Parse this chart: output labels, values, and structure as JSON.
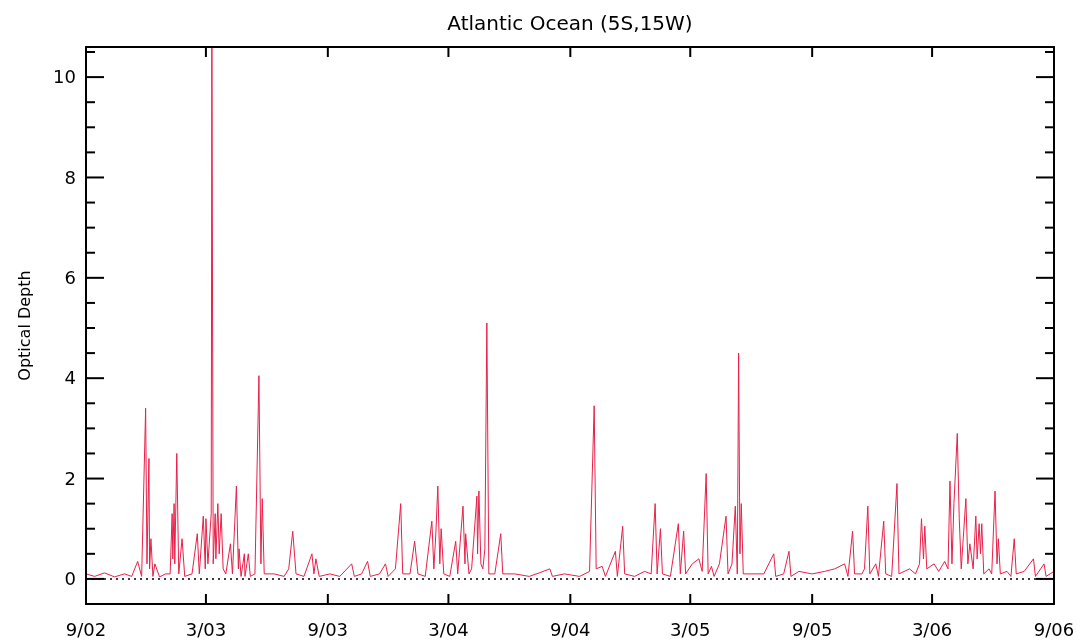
{
  "chart_data": {
    "type": "line",
    "title": "Atlantic Ocean (5S,15W)",
    "ylabel": "Optical Depth",
    "x": [
      "2002-09-01",
      "2002-09-14",
      "2002-09-29",
      "2002-10-14",
      "2002-10-29",
      "2002-11-09",
      "2002-11-18",
      "2002-11-24",
      "2002-11-30",
      "2002-12-02",
      "2002-12-05",
      "2002-12-06",
      "2002-12-08",
      "2002-12-11",
      "2002-12-14",
      "2002-12-21",
      "2002-12-30",
      "2003-01-06",
      "2003-01-09",
      "2003-01-10",
      "2003-01-12",
      "2003-01-13",
      "2003-01-16",
      "2003-01-19",
      "2003-01-24",
      "2003-01-28",
      "2003-02-08",
      "2003-02-16",
      "2003-02-19",
      "2003-02-25",
      "2003-02-28",
      "2003-03-01",
      "2003-03-04",
      "2003-03-09",
      "2003-03-10",
      "2003-03-12",
      "2003-03-15",
      "2003-03-16",
      "2003-03-19",
      "2003-03-21",
      "2003-03-24",
      "2003-03-27",
      "2003-03-31",
      "2003-04-07",
      "2003-04-10",
      "2003-04-16",
      "2003-04-19",
      "2003-04-20",
      "2003-04-23",
      "2003-04-28",
      "2003-04-29",
      "2003-05-04",
      "2003-05-07",
      "2003-05-14",
      "2003-05-20",
      "2003-05-23",
      "2003-05-25",
      "2003-05-28",
      "2003-06-12",
      "2003-06-27",
      "2003-07-04",
      "2003-07-10",
      "2003-07-15",
      "2003-07-27",
      "2003-08-08",
      "2003-08-11",
      "2003-08-14",
      "2003-08-19",
      "2003-09-04",
      "2003-09-19",
      "2003-10-07",
      "2003-10-11",
      "2003-10-22",
      "2003-10-31",
      "2003-11-04",
      "2003-11-18",
      "2003-11-27",
      "2003-12-01",
      "2003-12-12",
      "2003-12-20",
      "2003-12-23",
      "2004-01-03",
      "2004-01-10",
      "2004-01-15",
      "2004-01-26",
      "2004-02-05",
      "2004-02-08",
      "2004-02-11",
      "2004-02-14",
      "2004-02-17",
      "2004-02-19",
      "2004-02-23",
      "2004-03-03",
      "2004-03-12",
      "2004-03-15",
      "2004-03-23",
      "2004-03-26",
      "2004-03-27",
      "2004-04-01",
      "2004-04-05",
      "2004-04-13",
      "2004-04-14",
      "2004-04-16",
      "2004-04-19",
      "2004-04-22",
      "2004-04-25",
      "2004-04-28",
      "2004-05-01",
      "2004-05-10",
      "2004-05-19",
      "2004-05-22",
      "2004-06-09",
      "2004-07-01",
      "2004-07-16",
      "2004-08-01",
      "2004-08-05",
      "2004-08-23",
      "2004-09-15",
      "2004-09-30",
      "2004-10-07",
      "2004-10-10",
      "2004-10-19",
      "2004-10-24",
      "2004-11-08",
      "2004-11-11",
      "2004-11-19",
      "2004-11-22",
      "2004-12-07",
      "2004-12-22",
      "2005-01-01",
      "2005-01-07",
      "2005-01-10",
      "2005-01-15",
      "2005-01-18",
      "2005-01-30",
      "2005-02-11",
      "2005-02-14",
      "2005-02-19",
      "2005-02-22",
      "2005-03-04",
      "2005-03-14",
      "2005-03-19",
      "2005-03-25",
      "2005-03-28",
      "2005-04-02",
      "2005-04-06",
      "2005-04-14",
      "2005-04-24",
      "2005-04-27",
      "2005-05-03",
      "2005-05-08",
      "2005-05-11",
      "2005-05-13",
      "2005-05-15",
      "2005-05-17",
      "2005-05-20",
      "2005-06-05",
      "2005-06-20",
      "2005-07-05",
      "2005-07-08",
      "2005-07-20",
      "2005-07-28",
      "2005-07-31",
      "2005-08-12",
      "2005-09-01",
      "2005-09-20",
      "2005-10-05",
      "2005-10-20",
      "2005-10-25",
      "2005-11-01",
      "2005-11-04",
      "2005-11-15",
      "2005-11-19",
      "2005-11-24",
      "2005-11-27",
      "2005-12-06",
      "2005-12-10",
      "2005-12-18",
      "2005-12-21",
      "2005-12-30",
      "2006-01-07",
      "2006-01-10",
      "2006-01-26",
      "2006-02-04",
      "2006-02-10",
      "2006-02-13",
      "2006-02-16",
      "2006-02-18",
      "2006-02-21",
      "2006-03-04",
      "2006-03-11",
      "2006-03-20",
      "2006-03-25",
      "2006-03-28",
      "2006-03-31",
      "2006-04-03",
      "2006-04-08",
      "2006-04-11",
      "2006-04-14",
      "2006-04-17",
      "2006-04-21",
      "2006-04-24",
      "2006-04-27",
      "2006-05-02",
      "2006-05-06",
      "2006-05-08",
      "2006-05-11",
      "2006-05-13",
      "2006-05-15",
      "2006-05-18",
      "2006-05-26",
      "2006-05-30",
      "2006-06-04",
      "2006-06-07",
      "2006-06-09",
      "2006-06-12",
      "2006-06-22",
      "2006-06-28",
      "2006-07-03",
      "2006-07-06",
      "2006-07-18",
      "2006-08-01",
      "2006-08-04",
      "2006-08-17",
      "2006-08-20",
      "2006-09-01"
    ],
    "series": [
      {
        "color": "#e8204a",
        "values": [
          0.1,
          0.05,
          0.12,
          0.04,
          0.1,
          0.05,
          0.35,
          0.05,
          3.4,
          0.3,
          2.4,
          0.2,
          0.8,
          0.05,
          0.3,
          0.04,
          0.1,
          0.1,
          1.3,
          0.4,
          1.5,
          0.3,
          2.5,
          0.1,
          0.8,
          0.05,
          0.1,
          0.9,
          0.1,
          1.25,
          0.2,
          1.2,
          0.3,
          1.3,
          10.6,
          0.3,
          1.3,
          0.4,
          1.5,
          0.5,
          1.3,
          0.2,
          0.1,
          0.7,
          0.1,
          1.85,
          0.2,
          0.6,
          0.05,
          0.5,
          0.05,
          0.5,
          0.05,
          0.1,
          4.05,
          0.3,
          1.6,
          0.1,
          0.1,
          0.05,
          0.2,
          0.95,
          0.1,
          0.05,
          0.5,
          0.1,
          0.4,
          0.05,
          0.1,
          0.05,
          0.3,
          0.05,
          0.1,
          0.35,
          0.05,
          0.1,
          0.3,
          0.05,
          0.2,
          1.5,
          0.1,
          0.1,
          0.75,
          0.1,
          0.05,
          1.15,
          0.2,
          0.9,
          1.85,
          0.3,
          1.0,
          0.1,
          0.05,
          0.75,
          0.1,
          1.45,
          0.3,
          0.9,
          0.1,
          0.2,
          1.65,
          0.5,
          1.75,
          0.3,
          0.2,
          0.6,
          5.1,
          0.1,
          0.1,
          0.9,
          0.1,
          0.1,
          0.05,
          0.12,
          0.2,
          0.05,
          0.1,
          0.05,
          0.15,
          3.45,
          0.2,
          0.25,
          0.05,
          0.55,
          0.05,
          1.05,
          0.1,
          0.05,
          0.15,
          0.1,
          1.5,
          0.1,
          1.0,
          0.1,
          0.05,
          1.1,
          0.1,
          0.95,
          0.1,
          0.3,
          0.4,
          0.15,
          2.1,
          0.1,
          0.25,
          0.05,
          0.3,
          1.25,
          0.1,
          0.3,
          1.45,
          0.1,
          4.5,
          0.5,
          1.5,
          0.1,
          0.1,
          0.1,
          0.5,
          0.05,
          0.1,
          0.55,
          0.05,
          0.15,
          0.1,
          0.15,
          0.2,
          0.3,
          0.05,
          0.95,
          0.1,
          0.1,
          0.2,
          1.45,
          0.1,
          0.3,
          0.05,
          1.15,
          0.1,
          0.05,
          1.9,
          0.1,
          0.2,
          0.1,
          0.3,
          1.2,
          0.4,
          1.05,
          0.2,
          0.3,
          0.15,
          0.35,
          0.2,
          1.95,
          0.3,
          1.5,
          2.9,
          1.2,
          0.2,
          0.8,
          1.6,
          0.3,
          0.7,
          0.2,
          1.25,
          0.4,
          1.1,
          0.5,
          1.1,
          0.1,
          0.2,
          0.1,
          1.75,
          0.3,
          0.8,
          0.1,
          0.15,
          0.05,
          0.8,
          0.1,
          0.15,
          0.4,
          0.05,
          0.3,
          0.05,
          0.15
        ]
      }
    ],
    "xlim": [
      "2002-09-01",
      "2006-09-01"
    ],
    "xticks": [
      {
        "value": "2002-09-01",
        "label": "9/02"
      },
      {
        "value": "2003-03-01",
        "label": "3/03"
      },
      {
        "value": "2003-09-01",
        "label": "9/03"
      },
      {
        "value": "2004-03-01",
        "label": "3/04"
      },
      {
        "value": "2004-09-01",
        "label": "9/04"
      },
      {
        "value": "2005-03-01",
        "label": "3/05"
      },
      {
        "value": "2005-09-01",
        "label": "9/05"
      },
      {
        "value": "2006-03-01",
        "label": "3/06"
      },
      {
        "value": "2006-09-01",
        "label": "9/06"
      }
    ],
    "ylim": [
      -0.5,
      10.6
    ],
    "yticks": [
      0,
      {
        "value": 0.5,
        "label": null
      },
      {
        "value": 1,
        "label": null
      },
      {
        "value": 1.5,
        "label": null
      },
      2,
      {
        "value": 2.5,
        "label": null
      },
      {
        "value": 3,
        "label": null
      },
      {
        "value": 3.5,
        "label": null
      },
      4,
      {
        "value": 4.5,
        "label": null
      },
      {
        "value": 5,
        "label": null
      },
      {
        "value": 5.5,
        "label": null
      },
      6,
      {
        "value": 6.5,
        "label": null
      },
      {
        "value": 7,
        "label": null
      },
      {
        "value": 7.5,
        "label": null
      },
      8,
      {
        "value": 8.5,
        "label": null
      },
      {
        "value": 9,
        "label": null
      },
      {
        "value": 9.5,
        "label": null
      },
      10,
      {
        "value": 10.5,
        "label": null
      }
    ],
    "ref_lines": [
      {
        "axis": "y",
        "value": 0,
        "color": "#000000",
        "line_style": "dotted"
      }
    ],
    "grid": false,
    "marker": "none",
    "line_style": "solid"
  }
}
